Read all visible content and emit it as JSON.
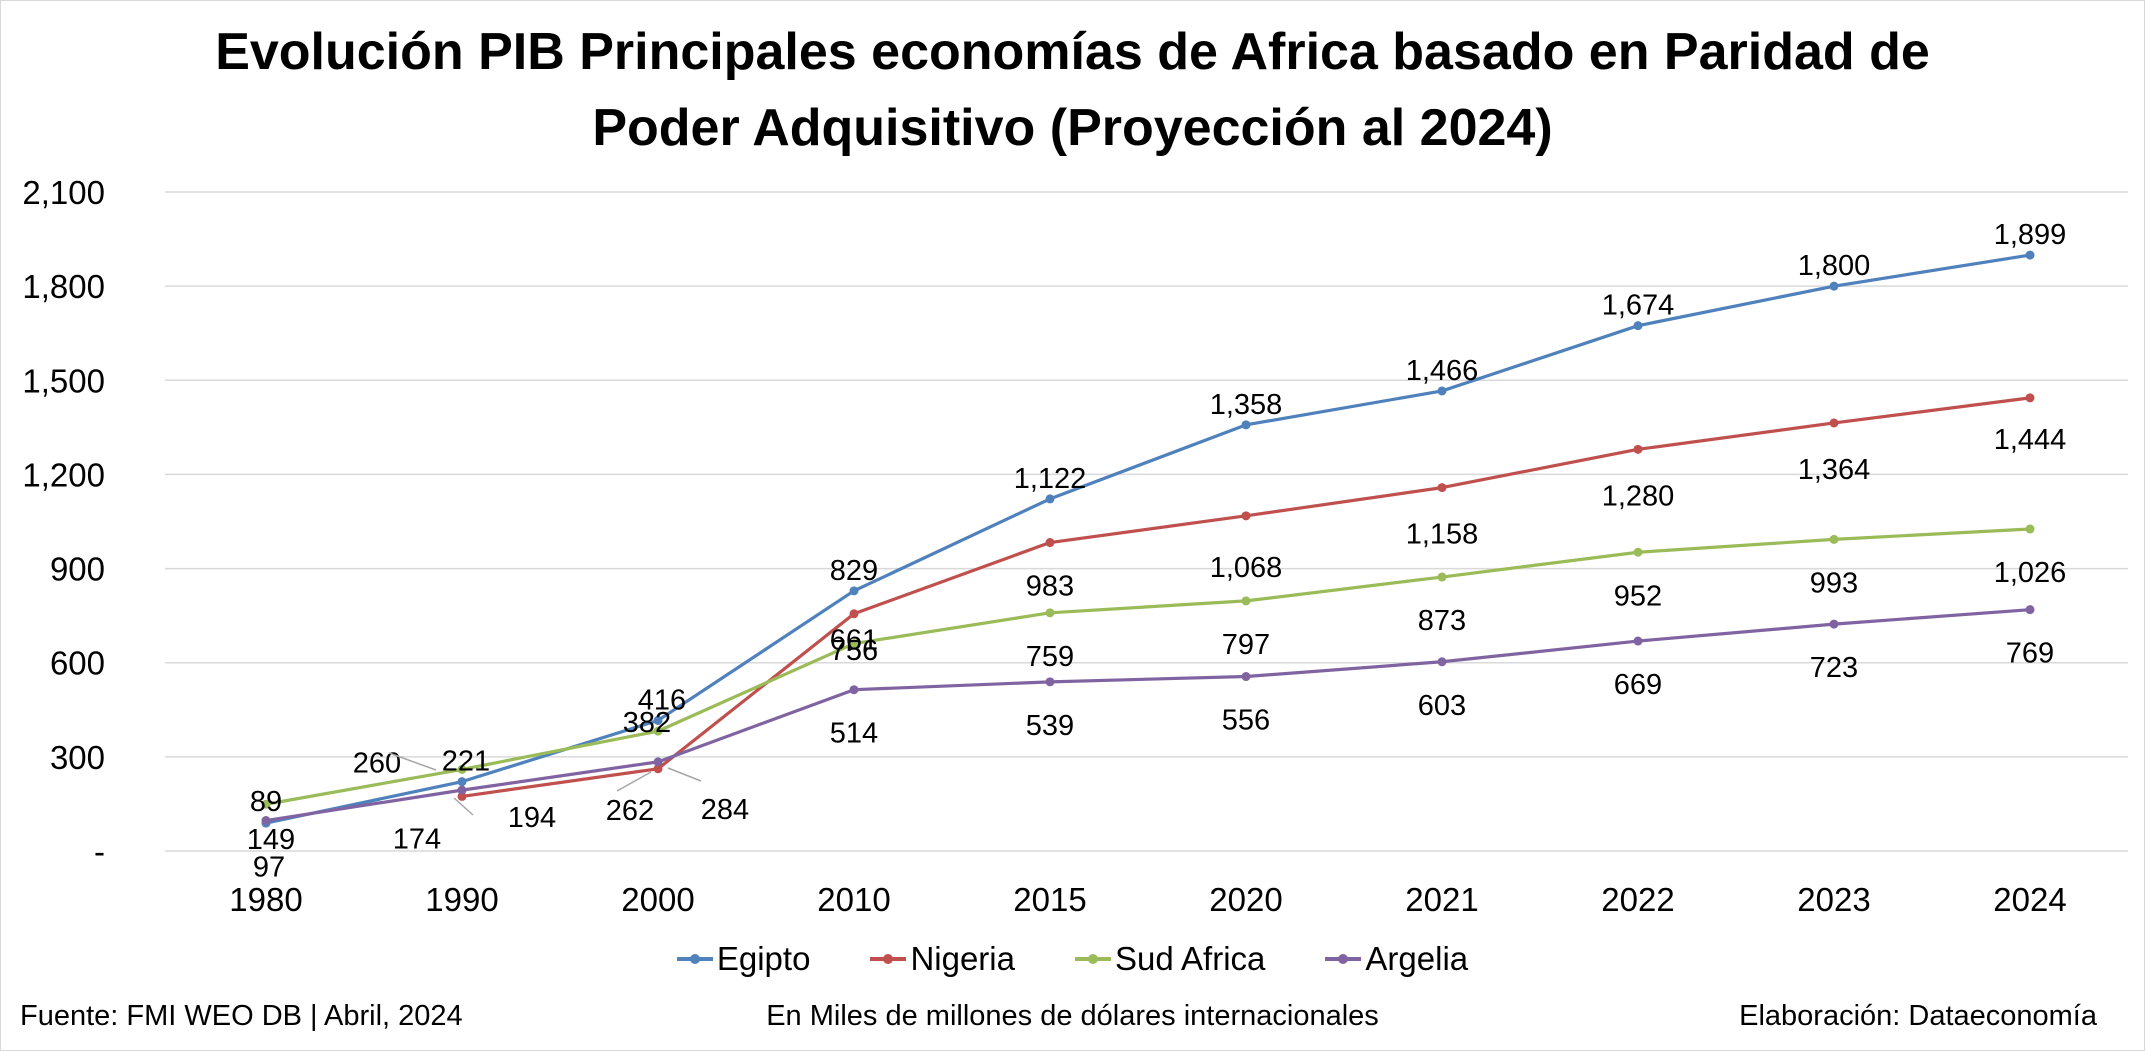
{
  "chart_data": {
    "type": "line",
    "title_line1": "Evolución PIB Principales economías de Africa basado en Paridad de",
    "title_line2": "Poder Adquisitivo (Proyección al 2024)",
    "categories": [
      "1980",
      "1990",
      "2000",
      "2010",
      "2015",
      "2020",
      "2021",
      "2022",
      "2023",
      "2024"
    ],
    "y_ticks": [
      "-",
      "300",
      "600",
      "900",
      "1,200",
      "1,500",
      "1,800",
      "2,100"
    ],
    "ylim": [
      0,
      2100
    ],
    "grid": true,
    "legend_position": "bottom",
    "series": [
      {
        "name": "Egipto",
        "color": "#4f81bd",
        "values": [
          89,
          221,
          416,
          829,
          1122,
          1358,
          1466,
          1674,
          1800,
          1899
        ],
        "labels": [
          "89",
          "221",
          "416",
          "829",
          "1,122",
          "1,358",
          "1,466",
          "1,674",
          "1,800",
          "1,899"
        ]
      },
      {
        "name": "Nigeria",
        "color": "#c0504d",
        "values": [
          null,
          174,
          262,
          756,
          983,
          1068,
          1158,
          1280,
          1364,
          1444
        ],
        "labels": [
          "",
          "174",
          "262",
          "756",
          "983",
          "1,068",
          "1,158",
          "1,280",
          "1,364",
          "1,444"
        ]
      },
      {
        "name": "Sud Africa",
        "color": "#9bbb59",
        "values": [
          149,
          260,
          382,
          661,
          759,
          797,
          873,
          952,
          993,
          1026
        ],
        "labels": [
          "149",
          "260",
          "382",
          "661",
          "759",
          "797",
          "873",
          "952",
          "993",
          "1,026"
        ]
      },
      {
        "name": "Argelia",
        "color": "#8064a2",
        "values": [
          97,
          194,
          284,
          514,
          539,
          556,
          603,
          669,
          723,
          769
        ],
        "labels": [
          "97",
          "194",
          "284",
          "514",
          "539",
          "556",
          "603",
          "669",
          "723",
          "769"
        ]
      }
    ]
  },
  "footer": {
    "source": "Fuente: FMI WEO DB | Abril, 2024",
    "units": "En Miles de millones de dólares internacionales",
    "credit": "Elaboración: Dataeconomía"
  }
}
